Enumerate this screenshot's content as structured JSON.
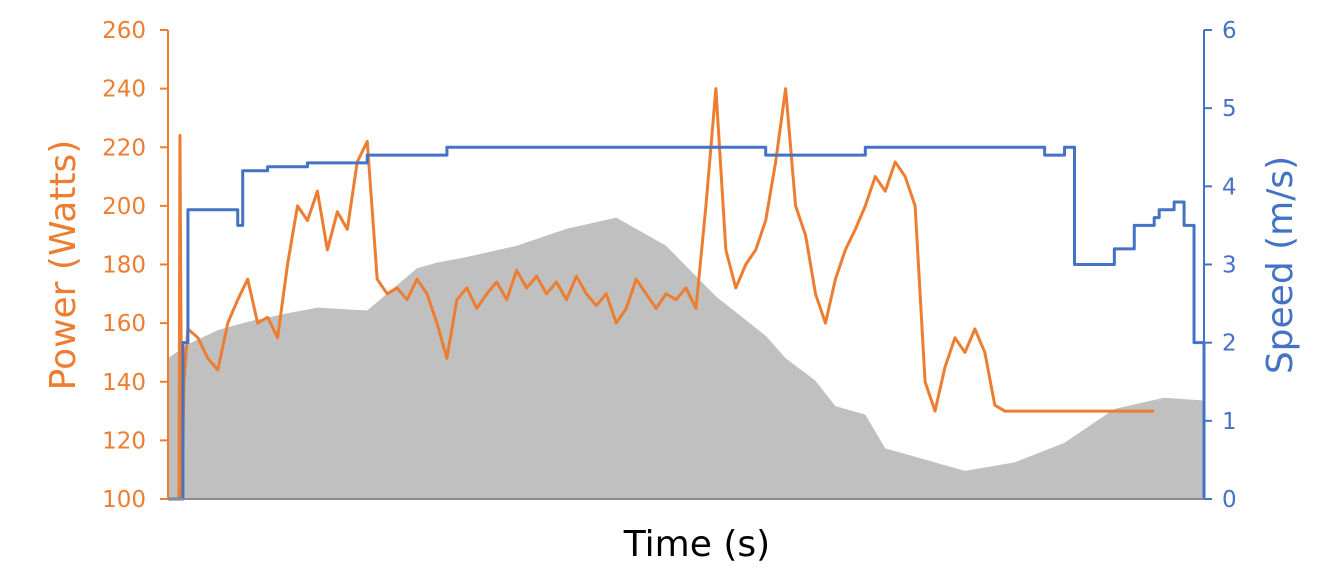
{
  "chart_data": {
    "type": "line",
    "title": "",
    "xlabel": "Time (s)",
    "ylabel_left": "Power (Watts)",
    "ylabel_right": "Speed (m/s)",
    "x_ticks_shown": false,
    "grid": false,
    "legend": "none",
    "x_range": [
      0,
      100
    ],
    "y_left": {
      "min": 100,
      "max": 260,
      "ticks": [
        "100",
        "120",
        "140",
        "160",
        "180",
        "200",
        "220",
        "240",
        "260"
      ],
      "color": "#ED7D31"
    },
    "y_right": {
      "min": 0,
      "max": 6,
      "ticks": [
        "0",
        "1",
        "2",
        "3",
        "4",
        "5",
        "6"
      ],
      "color": "#4472C4"
    },
    "series": [
      {
        "axis": "left",
        "color": "#ED7D31",
        "x": [
          0,
          1.1,
          1.2,
          1.4,
          1.6,
          2,
          3,
          4,
          5,
          6,
          7,
          8,
          9,
          10,
          11,
          12,
          13,
          14,
          15,
          16,
          17,
          18,
          19,
          20,
          21,
          22,
          23,
          24,
          25,
          26,
          27,
          28,
          29,
          30,
          31,
          32,
          33,
          34,
          35,
          36,
          37,
          38,
          39,
          40,
          41,
          42,
          43,
          44,
          45,
          46,
          47,
          48,
          49,
          50,
          51,
          52,
          53,
          54,
          55,
          56,
          57,
          58,
          59,
          60,
          61,
          62,
          63,
          64,
          65,
          66,
          67,
          68,
          69,
          70,
          71,
          72,
          73,
          74,
          75,
          76,
          77,
          78,
          79,
          80,
          81,
          82,
          83,
          84,
          85,
          86,
          87,
          88,
          89,
          90,
          91,
          92,
          93,
          94,
          95,
          96,
          97,
          98,
          99
        ],
        "y": [
          100,
          100,
          224,
          100,
          140,
          158,
          155,
          148,
          144,
          160,
          168,
          175,
          160,
          162,
          155,
          180,
          200,
          195,
          205,
          185,
          198,
          192,
          215,
          222,
          175,
          170,
          172,
          168,
          175,
          170,
          160,
          148,
          168,
          172,
          165,
          170,
          174,
          168,
          178,
          172,
          176,
          170,
          174,
          168,
          176,
          170,
          166,
          170,
          160,
          165,
          175,
          170,
          165,
          170,
          168,
          172,
          165,
          200,
          240,
          185,
          172,
          180,
          185,
          195,
          215,
          240,
          200,
          190,
          170,
          160,
          175,
          185,
          192,
          200,
          210,
          205,
          215,
          210,
          200,
          140,
          130,
          145,
          155,
          150,
          158,
          150,
          132,
          130,
          130,
          130,
          130,
          130,
          130,
          130,
          130,
          130,
          130,
          130,
          130,
          130,
          130,
          130,
          130
        ]
      },
      {
        "axis": "right",
        "color": "#4472C4",
        "x": [
          0,
          0.5,
          1,
          1.5,
          2,
          7,
          7.5,
          10,
          14,
          20,
          28,
          30,
          34,
          40,
          50,
          60,
          70,
          80,
          84,
          88,
          90,
          91,
          93,
          95,
          97,
          99,
          99.5,
          100,
          101,
          102,
          103,
          104
        ],
        "y": [
          0,
          0,
          0,
          2,
          3.7,
          3.5,
          4.2,
          4.25,
          4.3,
          4.4,
          4.5,
          4.5,
          4.5,
          4.5,
          4.5,
          4.4,
          4.5,
          4.5,
          4.5,
          4.4,
          4.5,
          3,
          3,
          3.2,
          3.5,
          3.6,
          3.7,
          3.7,
          3.8,
          3.5,
          2,
          0
        ]
      }
    ],
    "area": {
      "color": "#C0C0C0",
      "x": [
        0,
        2,
        5,
        8,
        12,
        15,
        20,
        25,
        27,
        30,
        35,
        40,
        45,
        50,
        55,
        60,
        62,
        65,
        67,
        70,
        72,
        75,
        78,
        80,
        85,
        90,
        95,
        100,
        104
      ],
      "y": [
        0.5,
        0.55,
        0.6,
        0.63,
        0.66,
        0.68,
        0.67,
        0.82,
        0.84,
        0.86,
        0.9,
        0.96,
        1.0,
        0.9,
        0.72,
        0.58,
        0.5,
        0.42,
        0.33,
        0.3,
        0.18,
        0.15,
        0.12,
        0.1,
        0.13,
        0.2,
        0.32,
        0.36,
        0.35
      ]
    }
  }
}
